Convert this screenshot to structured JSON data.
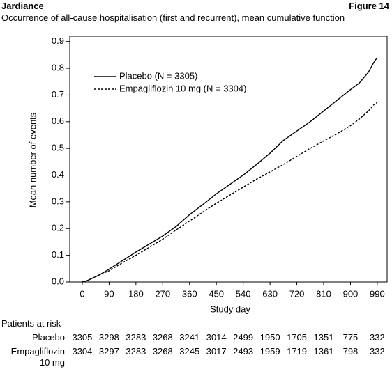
{
  "header": {
    "brand": "Jardiance",
    "figure": "Figure 14"
  },
  "chart_data": {
    "type": "line",
    "title": "Occurrence of all-cause hospitalisation (first and recurrent), mean cumulative function",
    "x_label": "Study day",
    "y_label": "Mean number of events",
    "x": [
      0,
      10,
      30,
      60,
      90,
      135,
      180,
      225,
      270,
      315,
      360,
      405,
      450,
      495,
      540,
      585,
      630,
      675,
      720,
      765,
      810,
      855,
      900,
      930,
      960,
      980,
      990
    ],
    "series": [
      {
        "name": "Placebo (N = 3305)",
        "color": "#000000",
        "line_style": "solid",
        "values": [
          0,
          0.002,
          0.012,
          0.028,
          0.048,
          0.08,
          0.112,
          0.142,
          0.172,
          0.208,
          0.252,
          0.29,
          0.33,
          0.365,
          0.4,
          0.44,
          0.482,
          0.53,
          0.565,
          0.6,
          0.64,
          0.68,
          0.72,
          0.745,
          0.785,
          0.825,
          0.84
        ]
      },
      {
        "name": "Empagliflozin 10 mg (N = 3304)",
        "color": "#000000",
        "line_style": "dashed",
        "values": [
          0,
          0.002,
          0.012,
          0.028,
          0.042,
          0.072,
          0.1,
          0.13,
          0.16,
          0.195,
          0.228,
          0.262,
          0.295,
          0.325,
          0.355,
          0.385,
          0.412,
          0.44,
          0.47,
          0.5,
          0.528,
          0.555,
          0.585,
          0.61,
          0.64,
          0.665,
          0.672
        ]
      }
    ],
    "xlim": [
      -42,
      1023
    ],
    "ylim": [
      0,
      0.92
    ],
    "xticks": [
      0,
      90,
      180,
      270,
      360,
      450,
      540,
      630,
      720,
      810,
      900,
      990
    ],
    "yticks": [
      {
        "value": 0,
        "label": "0.0"
      },
      0.1,
      0.2,
      0.3,
      0.4,
      0.5,
      0.6,
      0.7,
      0.8,
      0.9
    ],
    "legend": "upper left",
    "risk_table": {
      "title": "Patients at risk",
      "rows": [
        {
          "label": "Placebo",
          "values": [
            3305,
            3298,
            3283,
            3268,
            3241,
            3014,
            2499,
            1950,
            1705,
            1351,
            775,
            332
          ]
        },
        {
          "label": "Empagliflozin 10 mg",
          "values": [
            3304,
            3297,
            3283,
            3268,
            3245,
            3017,
            2493,
            1959,
            1719,
            1361,
            798,
            332
          ]
        }
      ]
    }
  }
}
